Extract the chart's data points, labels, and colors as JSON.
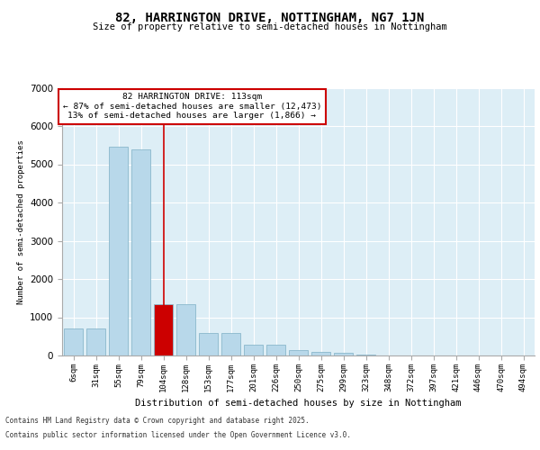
{
  "title": "82, HARRINGTON DRIVE, NOTTINGHAM, NG7 1JN",
  "subtitle": "Size of property relative to semi-detached houses in Nottingham",
  "xlabel": "Distribution of semi-detached houses by size in Nottingham",
  "ylabel": "Number of semi-detached properties",
  "categories": [
    "6sqm",
    "31sqm",
    "55sqm",
    "79sqm",
    "104sqm",
    "128sqm",
    "153sqm",
    "177sqm",
    "201sqm",
    "226sqm",
    "250sqm",
    "275sqm",
    "299sqm",
    "323sqm",
    "348sqm",
    "372sqm",
    "397sqm",
    "421sqm",
    "446sqm",
    "470sqm",
    "494sqm"
  ],
  "values": [
    700,
    700,
    5450,
    5400,
    1350,
    1350,
    600,
    600,
    280,
    280,
    150,
    100,
    60,
    30,
    0,
    0,
    0,
    0,
    0,
    0,
    0
  ],
  "property_bar_index": 4,
  "annotation_title": "82 HARRINGTON DRIVE: 113sqm",
  "annotation_line1": "← 87% of semi-detached houses are smaller (12,473)",
  "annotation_line2": "13% of semi-detached houses are larger (1,866) →",
  "ylim": [
    0,
    7000
  ],
  "yticks": [
    0,
    1000,
    2000,
    3000,
    4000,
    5000,
    6000,
    7000
  ],
  "background_color": "#ddeef6",
  "bar_color_normal": "#b8d8ea",
  "bar_color_property": "#cc0000",
  "bar_edge_color": "#8ab8cc",
  "property_line_color": "#cc0000",
  "footer_line1": "Contains HM Land Registry data © Crown copyright and database right 2025.",
  "footer_line2": "Contains public sector information licensed under the Open Government Licence v3.0."
}
